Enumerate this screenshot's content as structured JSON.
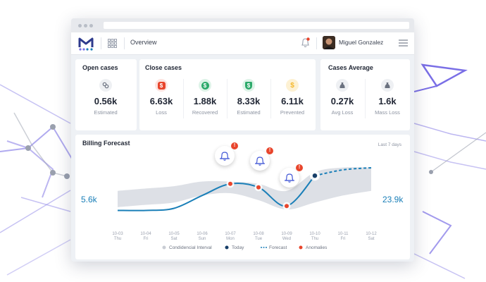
{
  "app": {
    "name": "Overview",
    "user": "Miguel Gonzalez"
  },
  "colors": {
    "accent": "#1a7fb8",
    "navy": "#173e68",
    "red": "#e8452c",
    "green": "#2daa6b",
    "yellow": "#f5b82e",
    "band": "#d9dde3"
  },
  "cards": {
    "open": {
      "title": "Open cases",
      "metrics": [
        {
          "value": "0.56k",
          "label": "Estimated",
          "icon": "link-icon"
        }
      ]
    },
    "close": {
      "title": "Close cases",
      "metrics": [
        {
          "value": "6.63k",
          "label": "Loss",
          "icon": "dollar-icon"
        },
        {
          "value": "1.88k",
          "label": "Recovered",
          "icon": "dollar-icon"
        },
        {
          "value": "8.33k",
          "label": "Estimated",
          "icon": "dollar-icon"
        },
        {
          "value": "6.11k",
          "label": "Prevented",
          "icon": "coins-icon"
        }
      ]
    },
    "average": {
      "title": "Cases Average",
      "metrics": [
        {
          "value": "0.27k",
          "label": "Avg Loss",
          "icon": "money-bag-icon"
        },
        {
          "value": "1.6k",
          "label": "Mass Loss",
          "icon": "money-bag-icon"
        }
      ]
    }
  },
  "forecast": {
    "title": "Billing Forecast",
    "period": "Last 7 days",
    "left_value": "5.6k",
    "right_value": "23.9k"
  },
  "chart_data": {
    "type": "line",
    "title": "Billing Forecast",
    "categories": [
      "10-03",
      "10-04",
      "10-05",
      "10-06",
      "10-07",
      "10-08",
      "10-09",
      "10-10",
      "10-11",
      "10-12"
    ],
    "days": [
      "Thu",
      "Fri",
      "Sat",
      "Sun",
      "Mon",
      "Tue",
      "Wed",
      "Thu",
      "Fri",
      "Sat"
    ],
    "series": [
      {
        "name": "Today",
        "values": [
          5.6,
          5.6,
          6.5,
          12,
          17,
          15.5,
          7.5,
          20.5,
          null,
          null
        ]
      },
      {
        "name": "Forecast",
        "values": [
          null,
          null,
          null,
          null,
          null,
          null,
          null,
          20.5,
          23,
          23.9
        ]
      },
      {
        "name": "Condidencial Interval",
        "values": [
          [
            7,
            14
          ],
          [
            8,
            15
          ],
          [
            9,
            16
          ],
          [
            12,
            18
          ],
          [
            13,
            18
          ],
          [
            10,
            17
          ],
          [
            6,
            14
          ],
          [
            9,
            22
          ],
          [
            12,
            24
          ],
          [
            14,
            24
          ]
        ]
      },
      {
        "name": "Anomalies",
        "values": [
          null,
          null,
          null,
          null,
          17,
          15.5,
          7.5,
          null,
          null,
          null
        ]
      }
    ],
    "legend": [
      "Condidencial Interval",
      "Today",
      "Forecast",
      "Anomalies"
    ],
    "legend_position": "bottom"
  }
}
